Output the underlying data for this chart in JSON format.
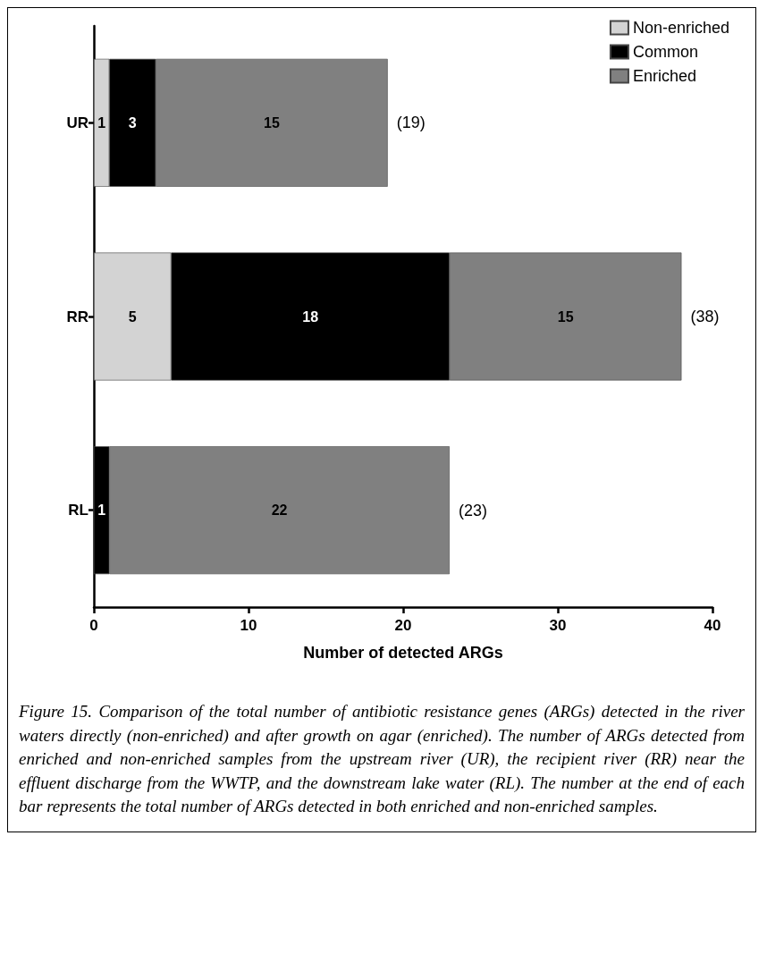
{
  "chart_data": {
    "type": "bar",
    "orientation": "horizontal",
    "stacked": true,
    "categories": [
      "UR",
      "RR",
      "RL"
    ],
    "series": [
      {
        "name": "Non-enriched",
        "color": "#d3d3d3",
        "values": [
          1,
          5,
          0
        ],
        "value_labels": [
          "1",
          "5",
          null
        ]
      },
      {
        "name": "Common",
        "color": "#000000",
        "values": [
          3,
          18,
          1
        ],
        "value_labels": [
          "3",
          "18",
          "1"
        ]
      },
      {
        "name": "Enriched",
        "color": "#808080",
        "values": [
          15,
          15,
          22
        ],
        "value_labels": [
          "15",
          "15",
          "22"
        ]
      }
    ],
    "totals": [
      "(19)",
      "(38)",
      "(23)"
    ],
    "xlabel": "Number of detected ARGs",
    "xlim": [
      0,
      40
    ],
    "xticks": [
      0,
      10,
      20,
      30,
      40
    ],
    "grid": false,
    "legend": "top right",
    "annotations": [
      "Figure 15. Comparison of the total number of antibiotic resistance genes (ARGs) detected in the river waters directly (non-enriched) and after growth on agar (enriched). The number of ARGs detected from enriched and non-enriched samples from the upstream river (UR), the recipient river (RR) near the effluent discharge from the WWTP, and the downstream lake water (RL). The number at the end of each bar represents the total number of ARGs detected in both enriched and non-enriched samples."
    ]
  }
}
